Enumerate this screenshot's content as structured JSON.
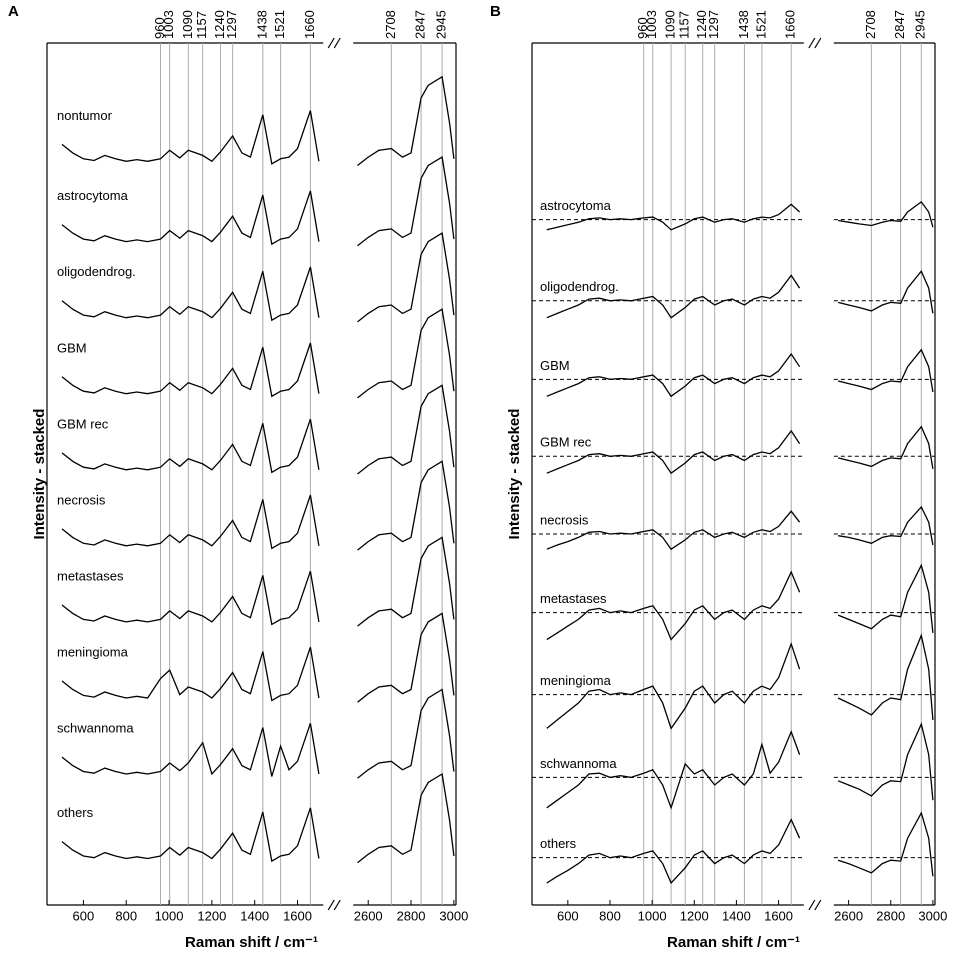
{
  "chart_data": [
    {
      "type": "line",
      "panel_label": "A",
      "xlabel": "Raman shift / cm⁻¹",
      "ylabel": "Intensity - stacked",
      "xlim": [
        430,
        3010
      ],
      "xbreak": [
        1720,
        2530
      ],
      "xticks": [
        600,
        800,
        1000,
        1200,
        1400,
        1600,
        2600,
        2800,
        3000
      ],
      "ylim": [
        0,
        102
      ],
      "reference_lines": [
        960,
        1003,
        1090,
        1157,
        1240,
        1297,
        1438,
        1521,
        1660,
        2708,
        2847,
        2945
      ],
      "x": [
        500,
        550,
        600,
        650,
        700,
        750,
        800,
        850,
        900,
        960,
        1003,
        1050,
        1090,
        1157,
        1200,
        1240,
        1297,
        1340,
        1380,
        1438,
        1480,
        1521,
        1560,
        1600,
        1660,
        1700,
        2550,
        2600,
        2650,
        2708,
        2760,
        2800,
        2847,
        2880,
        2945,
        2980,
        3000
      ],
      "series": [
        {
          "name": "nontumor",
          "color": "#000000",
          "values": [
            90.0,
            89.0,
            88.3,
            88.1,
            88.7,
            88.3,
            88.0,
            88.2,
            88.0,
            88.3,
            89.3,
            88.4,
            89.3,
            88.7,
            88.0,
            89.1,
            91.0,
            89.0,
            88.5,
            93.5,
            87.7,
            88.3,
            88.5,
            89.5,
            94.0,
            88.0,
            87.5,
            88.5,
            89.3,
            89.5,
            88.5,
            89.0,
            95.5,
            97.0,
            98.0,
            92.5,
            88.3
          ]
        },
        {
          "name": "astrocytoma",
          "color": "#000000",
          "values": [
            80.5,
            79.5,
            78.8,
            78.6,
            79.2,
            78.8,
            78.5,
            78.7,
            78.5,
            78.8,
            79.8,
            78.9,
            79.8,
            79.2,
            78.5,
            79.6,
            81.5,
            79.5,
            79.0,
            84.0,
            78.2,
            78.8,
            79.0,
            80.0,
            84.5,
            78.5,
            78.0,
            79.0,
            79.8,
            80.0,
            79.0,
            79.5,
            86.0,
            87.5,
            88.5,
            83.0,
            78.8
          ]
        },
        {
          "name": "oligodendrog.",
          "color": "#000000",
          "values": [
            71.5,
            70.5,
            69.8,
            69.6,
            70.2,
            69.8,
            69.5,
            69.7,
            69.5,
            69.8,
            70.8,
            69.9,
            70.8,
            70.2,
            69.5,
            70.6,
            72.5,
            70.5,
            70.0,
            75.0,
            69.2,
            69.8,
            70.0,
            71.0,
            75.5,
            69.5,
            69.0,
            70.0,
            70.8,
            71.0,
            70.0,
            70.5,
            77.0,
            78.5,
            79.5,
            74.0,
            69.8
          ]
        },
        {
          "name": "GBM",
          "color": "#000000",
          "values": [
            62.5,
            61.5,
            60.8,
            60.6,
            61.2,
            60.8,
            60.5,
            60.7,
            60.5,
            60.8,
            61.8,
            60.9,
            61.8,
            61.2,
            60.5,
            61.6,
            63.5,
            61.5,
            61.0,
            66.0,
            60.2,
            60.8,
            61.0,
            62.0,
            66.5,
            60.5,
            60.0,
            61.0,
            61.8,
            62.0,
            61.0,
            61.5,
            68.0,
            69.5,
            70.5,
            65.0,
            60.8
          ]
        },
        {
          "name": "GBM rec",
          "color": "#000000",
          "values": [
            53.5,
            52.5,
            51.8,
            51.6,
            52.2,
            51.8,
            51.5,
            51.7,
            51.5,
            51.8,
            52.8,
            51.9,
            52.8,
            52.2,
            51.5,
            52.6,
            54.5,
            52.5,
            52.0,
            57.0,
            51.2,
            51.8,
            52.0,
            53.0,
            57.5,
            51.5,
            51.0,
            52.0,
            52.8,
            53.0,
            52.0,
            52.5,
            59.0,
            60.5,
            61.5,
            56.0,
            51.8
          ]
        },
        {
          "name": "necrosis",
          "color": "#000000",
          "values": [
            44.5,
            43.5,
            42.8,
            42.6,
            43.2,
            42.8,
            42.5,
            42.7,
            42.5,
            42.8,
            43.8,
            42.9,
            43.8,
            43.2,
            42.5,
            43.6,
            45.5,
            43.5,
            43.0,
            48.0,
            42.2,
            42.8,
            43.0,
            44.0,
            48.5,
            42.5,
            42.0,
            43.0,
            43.8,
            44.0,
            43.0,
            43.5,
            50.0,
            51.5,
            52.5,
            47.0,
            42.8
          ]
        },
        {
          "name": "metastases",
          "color": "#000000",
          "values": [
            35.5,
            34.5,
            33.8,
            33.6,
            34.2,
            33.8,
            33.5,
            33.7,
            33.5,
            33.8,
            34.8,
            33.9,
            34.8,
            34.2,
            33.5,
            34.6,
            36.5,
            34.5,
            34.0,
            39.0,
            33.2,
            33.8,
            34.0,
            35.0,
            39.5,
            33.5,
            33.0,
            34.0,
            34.8,
            35.0,
            34.0,
            34.5,
            41.0,
            42.5,
            43.5,
            38.0,
            33.8
          ]
        },
        {
          "name": "meningioma",
          "color": "#000000",
          "values": [
            26.5,
            25.5,
            24.8,
            24.6,
            25.2,
            24.8,
            24.5,
            24.7,
            24.5,
            26.8,
            27.8,
            24.9,
            25.8,
            25.2,
            24.5,
            25.6,
            27.5,
            25.5,
            25.0,
            30.0,
            24.2,
            24.8,
            25.0,
            26.0,
            30.5,
            24.5,
            24.0,
            25.0,
            25.8,
            26.0,
            25.0,
            25.5,
            32.0,
            33.5,
            34.5,
            29.0,
            24.8
          ]
        },
        {
          "name": "schwannoma",
          "color": "#000000",
          "values": [
            17.5,
            16.5,
            15.8,
            15.6,
            16.2,
            15.8,
            15.5,
            15.7,
            15.5,
            15.8,
            16.8,
            15.9,
            16.8,
            19.2,
            15.5,
            16.6,
            18.5,
            16.5,
            16.0,
            21.0,
            15.2,
            18.8,
            16.0,
            17.0,
            21.5,
            15.5,
            15.0,
            16.0,
            16.8,
            17.0,
            16.0,
            16.5,
            23.0,
            24.5,
            25.5,
            20.0,
            15.8
          ]
        },
        {
          "name": "others",
          "color": "#000000",
          "values": [
            7.5,
            6.5,
            5.8,
            5.6,
            6.2,
            5.8,
            5.5,
            5.7,
            5.5,
            5.8,
            6.8,
            5.9,
            6.8,
            6.2,
            5.5,
            6.6,
            8.5,
            6.5,
            6.0,
            11.0,
            5.2,
            5.8,
            6.0,
            7.0,
            11.5,
            5.5,
            5.0,
            6.0,
            6.8,
            7.0,
            6.0,
            6.5,
            13.0,
            14.5,
            15.5,
            10.0,
            5.8
          ]
        }
      ]
    },
    {
      "type": "line",
      "panel_label": "B",
      "xlabel": "Raman shift / cm⁻¹",
      "ylabel": "Intensity - stacked",
      "xlim": [
        430,
        3010
      ],
      "xbreak": [
        1720,
        2530
      ],
      "xticks": [
        600,
        800,
        1000,
        1200,
        1400,
        1600,
        2600,
        2800,
        3000
      ],
      "ylim": [
        0,
        102
      ],
      "reference_lines": [
        960,
        1003,
        1090,
        1157,
        1240,
        1297,
        1438,
        1521,
        1660,
        2708,
        2847,
        2945
      ],
      "x": [
        500,
        550,
        600,
        650,
        700,
        750,
        800,
        850,
        900,
        960,
        1003,
        1050,
        1090,
        1157,
        1200,
        1240,
        1297,
        1340,
        1380,
        1438,
        1480,
        1521,
        1560,
        1600,
        1660,
        1700,
        2550,
        2600,
        2650,
        2708,
        2760,
        2800,
        2847,
        2880,
        2945,
        2980,
        3000
      ],
      "series": [
        {
          "name": "astrocytoma",
          "color": "#000000",
          "baseline": 81.1,
          "values": [
            79.9,
            80.2,
            80.5,
            80.8,
            81.2,
            81.3,
            81.1,
            81.2,
            81.1,
            81.3,
            81.4,
            80.8,
            79.9,
            80.6,
            81.2,
            81.4,
            80.8,
            81.1,
            81.2,
            80.8,
            81.2,
            81.4,
            81.3,
            81.7,
            82.9,
            82.0,
            81.0,
            80.8,
            80.6,
            80.4,
            80.8,
            81.0,
            80.9,
            82.0,
            83.2,
            82.0,
            80.2
          ]
        },
        {
          "name": "oligodendrog.",
          "color": "#000000",
          "baseline": 71.5,
          "values": [
            69.5,
            70.0,
            70.5,
            71.0,
            71.7,
            71.8,
            71.5,
            71.6,
            71.5,
            71.8,
            72.0,
            71.0,
            69.5,
            70.7,
            71.7,
            72.0,
            71.0,
            71.5,
            71.7,
            71.0,
            71.7,
            72.0,
            71.8,
            72.5,
            74.5,
            73.0,
            71.3,
            71.0,
            70.7,
            70.3,
            71.0,
            71.3,
            71.2,
            73.0,
            75.0,
            73.0,
            70.0
          ]
        },
        {
          "name": "GBM",
          "color": "#000000",
          "baseline": 62.2,
          "values": [
            60.2,
            60.7,
            61.2,
            61.7,
            62.4,
            62.5,
            62.2,
            62.3,
            62.2,
            62.5,
            62.7,
            61.7,
            60.2,
            61.4,
            62.4,
            62.7,
            61.7,
            62.2,
            62.4,
            61.7,
            62.4,
            62.7,
            62.5,
            63.2,
            65.2,
            63.7,
            62.0,
            61.7,
            61.4,
            61.0,
            61.7,
            62.0,
            61.9,
            63.7,
            65.7,
            63.7,
            60.7
          ]
        },
        {
          "name": "GBM rec",
          "color": "#000000",
          "baseline": 53.1,
          "values": [
            51.1,
            51.6,
            52.1,
            52.6,
            53.3,
            53.4,
            53.1,
            53.2,
            53.1,
            53.4,
            53.6,
            52.6,
            51.1,
            52.3,
            53.3,
            53.6,
            52.6,
            53.1,
            53.3,
            52.6,
            53.3,
            53.6,
            53.4,
            54.1,
            56.1,
            54.6,
            52.9,
            52.6,
            52.3,
            51.9,
            52.6,
            52.9,
            52.8,
            54.6,
            56.6,
            54.6,
            51.6
          ]
        },
        {
          "name": "necrosis",
          "color": "#000000",
          "baseline": 43.9,
          "values": [
            42.1,
            42.6,
            43.0,
            43.5,
            44.1,
            44.2,
            43.9,
            44.0,
            43.9,
            44.2,
            44.4,
            43.5,
            42.1,
            43.2,
            44.1,
            44.4,
            43.5,
            43.9,
            44.1,
            43.5,
            44.1,
            44.4,
            44.2,
            44.8,
            46.6,
            45.3,
            43.7,
            43.5,
            43.2,
            42.8,
            43.5,
            43.7,
            43.6,
            45.3,
            47.1,
            45.3,
            42.6
          ]
        },
        {
          "name": "metastases",
          "color": "#000000",
          "baseline": 34.6,
          "values": [
            31.4,
            32.2,
            33.0,
            33.8,
            34.9,
            35.1,
            34.6,
            34.8,
            34.6,
            35.1,
            35.4,
            33.8,
            31.4,
            33.3,
            34.9,
            35.4,
            33.8,
            34.6,
            34.9,
            33.8,
            34.9,
            35.4,
            35.1,
            36.2,
            39.4,
            37.0,
            34.3,
            33.8,
            33.3,
            32.7,
            33.8,
            34.3,
            34.1,
            37.0,
            40.2,
            37.0,
            32.2
          ]
        },
        {
          "name": "meningioma",
          "color": "#000000",
          "baseline": 24.9,
          "values": [
            20.9,
            21.9,
            22.9,
            23.9,
            25.3,
            25.5,
            24.9,
            25.1,
            24.9,
            25.5,
            25.9,
            23.9,
            20.9,
            23.3,
            25.3,
            25.9,
            23.9,
            24.9,
            25.3,
            23.9,
            25.3,
            25.9,
            25.5,
            26.9,
            30.9,
            27.9,
            24.5,
            23.9,
            23.3,
            22.5,
            23.9,
            24.5,
            24.3,
            27.9,
            31.9,
            27.9,
            21.9
          ]
        },
        {
          "name": "schwannoma",
          "color": "#000000",
          "baseline": 15.1,
          "values": [
            11.5,
            12.4,
            13.3,
            14.2,
            15.5,
            15.6,
            15.1,
            15.3,
            15.1,
            15.6,
            16.0,
            14.2,
            11.5,
            16.7,
            15.5,
            16.0,
            14.2,
            15.1,
            15.5,
            14.2,
            15.5,
            19.0,
            15.6,
            16.9,
            20.5,
            17.8,
            14.7,
            14.2,
            13.7,
            12.9,
            14.2,
            14.7,
            14.6,
            17.8,
            21.4,
            17.8,
            12.4
          ]
        },
        {
          "name": "others",
          "color": "#000000",
          "baseline": 5.6,
          "values": [
            2.6,
            3.4,
            4.1,
            4.9,
            5.9,
            6.1,
            5.6,
            5.8,
            5.6,
            6.1,
            6.4,
            4.9,
            2.6,
            4.4,
            5.9,
            6.4,
            4.9,
            5.6,
            5.9,
            4.9,
            5.9,
            6.4,
            6.1,
            7.1,
            10.1,
            7.9,
            5.3,
            4.9,
            4.4,
            3.8,
            4.9,
            5.3,
            5.2,
            7.9,
            10.9,
            7.9,
            3.4
          ]
        }
      ]
    }
  ]
}
